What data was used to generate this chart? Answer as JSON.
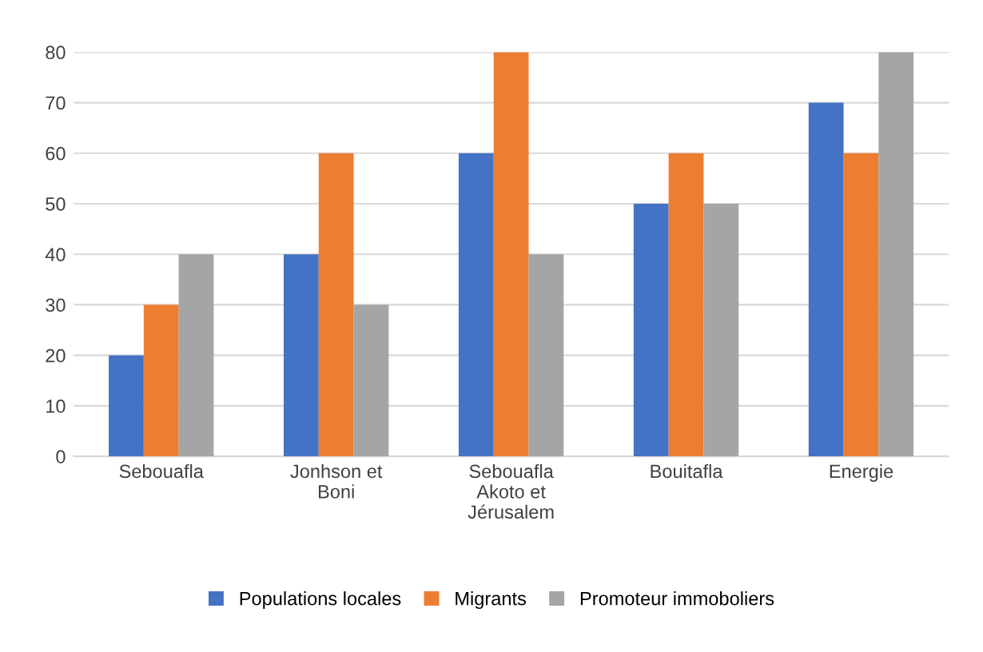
{
  "chart_data": {
    "type": "bar",
    "categories": [
      "Sebouafla",
      "Jonhson et Boni",
      "Sebouafla Akoto et Jérusalem",
      "Bouitafla",
      "Energie"
    ],
    "series": [
      {
        "name": "Populations locales",
        "color": "#4472c4",
        "values": [
          20,
          40,
          60,
          50,
          70
        ]
      },
      {
        "name": "Migrants",
        "color": "#ed7d31",
        "values": [
          30,
          60,
          80,
          60,
          60
        ]
      },
      {
        "name": "Promoteur immoboliers",
        "color": "#a5a5a5",
        "values": [
          40,
          30,
          40,
          50,
          80
        ]
      }
    ],
    "ylim": [
      0,
      80
    ],
    "yticks": [
      0,
      10,
      20,
      30,
      40,
      50,
      60,
      70,
      80
    ],
    "grid": "y",
    "legend": "bottom"
  }
}
